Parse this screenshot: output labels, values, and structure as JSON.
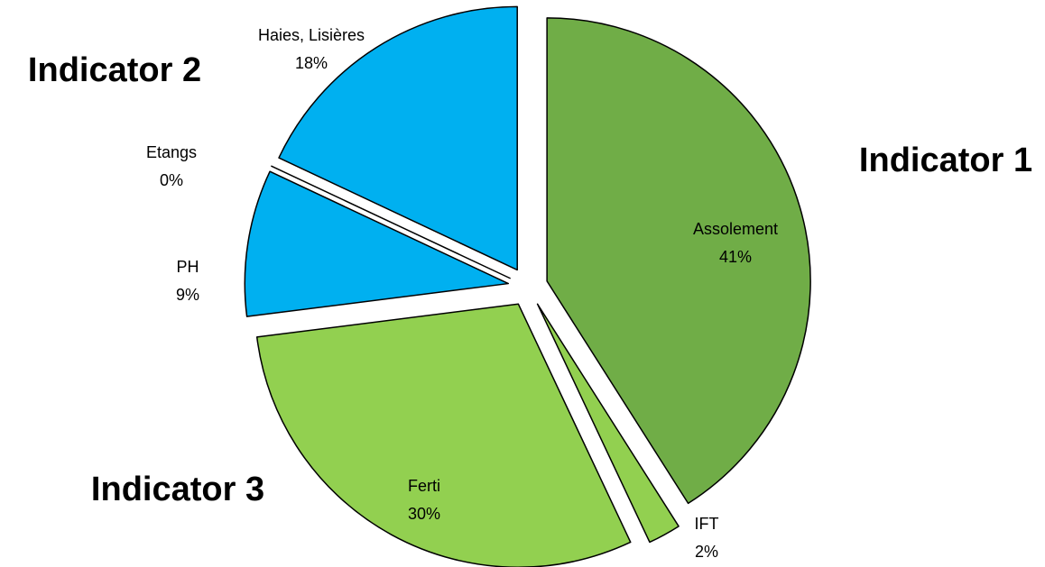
{
  "chart_data": {
    "type": "pie",
    "categories": [
      "Assolement",
      "IFT",
      "Ferti",
      "PH",
      "Etangs",
      "Haies, Lisières"
    ],
    "values": [
      41,
      2,
      30,
      9,
      0,
      18
    ],
    "value_labels": [
      "41%",
      "2%",
      "30%",
      "9%",
      "0%",
      "18%"
    ],
    "colors": [
      "#70ad47",
      "#92d050",
      "#92d050",
      "#00b0f0",
      "#00b0f0",
      "#00b0f0"
    ],
    "annotations": [
      "Indicator 1",
      "Indicator 2",
      "Indicator 3"
    ]
  }
}
